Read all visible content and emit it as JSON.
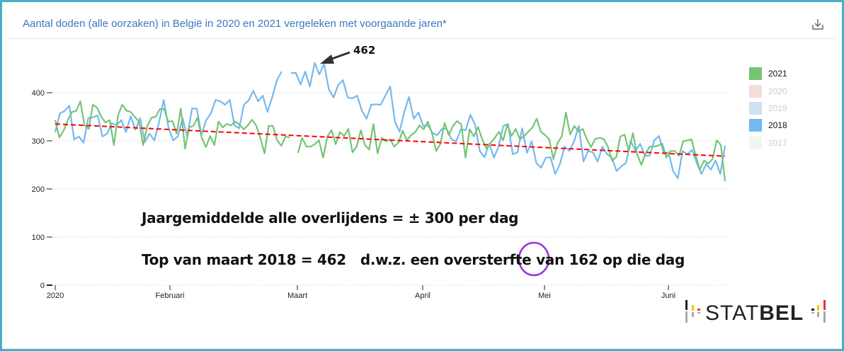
{
  "header": {
    "title": "Aantal doden (alle oorzaken) in België in 2020 en 2021 vergeleken met voorgaande jaren*",
    "download_icon": "download-icon"
  },
  "chart_data": {
    "type": "line",
    "title": "Aantal doden (alle oorzaken) in België in 2020 en 2021 vergeleken met voorgaande jaren*",
    "x_range": [
      "2020-01-01",
      "2020-06-26"
    ],
    "ylim": [
      0,
      470
    ],
    "y_ticks": [
      "0",
      "100",
      "200",
      "300",
      "400"
    ],
    "x_ticks": [
      "2020",
      "Februari",
      "Maart",
      "April",
      "Mei",
      "Juni"
    ],
    "grid": true,
    "legend_placement": "right",
    "legend": [
      {
        "label": "2021",
        "color": "#74c476",
        "active": true
      },
      {
        "label": "2020",
        "color": "#f4ddd6",
        "active": false
      },
      {
        "label": "2019",
        "color": "#cfe0ef",
        "active": false
      },
      {
        "label": "2018",
        "color": "#74b9ef",
        "active": true
      },
      {
        "label": "2017",
        "color": "#eef8ec",
        "active": false
      }
    ],
    "series": [
      {
        "name": "2018",
        "color": "#74b9ef",
        "values": [
          318,
          357,
          362,
          373,
          303,
          309,
          296,
          347,
          349,
          353,
          309,
          315,
          337,
          332,
          343,
          318,
          351,
          323,
          347,
          298,
          315,
          301,
          338,
          385,
          328,
          301,
          309,
          347,
          309,
          367,
          367,
          313,
          343,
          357,
          385,
          382,
          375,
          385,
          332,
          326,
          375,
          384,
          404,
          382,
          394,
          360,
          391,
          426,
          444,
          null,
          441,
          441,
          417,
          444,
          413,
          462,
          438,
          460,
          407,
          390,
          416,
          426,
          390,
          388,
          394,
          363,
          346,
          375,
          376,
          375,
          394,
          413,
          340,
          319,
          360,
          391,
          346,
          359,
          331,
          332,
          316,
          312,
          325,
          325,
          303,
          299,
          324,
          322,
          354,
          334,
          279,
          266,
          294,
          265,
          288,
          331,
          335,
          272,
          276,
          326,
          275,
          299,
          254,
          244,
          265,
          266,
          231,
          252,
          288,
          279,
          299,
          331,
          257,
          279,
          276,
          257,
          288,
          272,
          265,
          237,
          247,
          254,
          300,
          279,
          294,
          269,
          269,
          301,
          310,
          274,
          276,
          237,
          222,
          279,
          272,
          281,
          254,
          231,
          252,
          240,
          259,
          231,
          290
        ]
      },
      {
        "name": "2021",
        "color": "#74c476",
        "values": [
          343,
          307,
          321,
          343,
          360,
          362,
          382,
          332,
          325,
          375,
          369,
          350,
          338,
          343,
          291,
          353,
          375,
          363,
          360,
          350,
          340,
          291,
          331,
          348,
          350,
          366,
          366,
          340,
          341,
          315,
          367,
          284,
          328,
          331,
          348,
          306,
          287,
          310,
          291,
          340,
          328,
          335,
          332,
          340,
          334,
          324,
          332,
          344,
          332,
          306,
          274,
          331,
          331,
          301,
          290,
          309,
          307,
          null,
          275,
          306,
          288,
          288,
          293,
          301,
          265,
          309,
          322,
          293,
          318,
          310,
          325,
          276,
          288,
          322,
          291,
          282,
          335,
          274,
          306,
          299,
          303,
          288,
          296,
          321,
          301,
          312,
          318,
          332,
          324,
          340,
          316,
          279,
          294,
          337,
          312,
          331,
          341,
          334,
          265,
          324,
          309,
          329,
          303,
          284,
          296,
          306,
          319,
          301,
          334,
          310,
          325,
          303,
          310,
          319,
          328,
          346,
          319,
          312,
          303,
          262,
          296,
          309,
          359,
          313,
          331,
          319,
          325,
          303,
          287,
          304,
          306,
          304,
          288,
          259,
          266,
          309,
          313,
          279,
          316,
          272,
          250,
          274,
          288,
          288,
          290,
          294,
          265,
          279,
          279,
          269,
          299,
          301,
          303,
          269,
          240,
          259,
          253,
          262,
          301,
          291,
          216
        ]
      }
    ],
    "trend": {
      "color": "#ff0000",
      "start_value": 335,
      "end_value": 268
    },
    "annotations": {
      "peak_label": "462",
      "line1": "Jaargemiddelde alle  overlijdens = ± 300 per dag",
      "line2_a": "Top van maart 2018 = 462   d.w.z. een oversterfte van ",
      "line2_circled": "162",
      "line2_b": " op die dag",
      "circle_color": "#9b30e0"
    }
  },
  "logo": {
    "text": "STATBEL"
  }
}
